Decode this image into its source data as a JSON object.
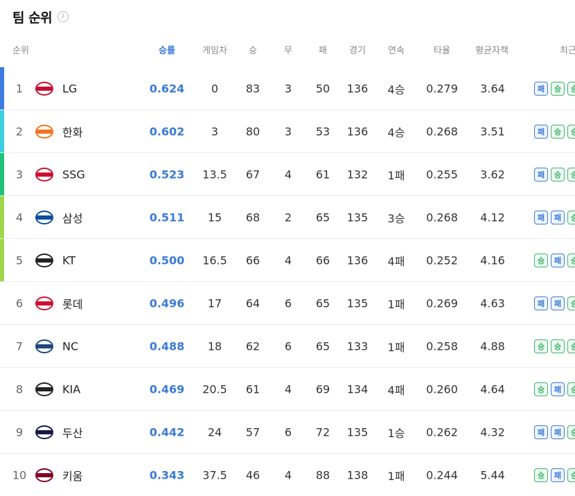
{
  "page": {
    "title": "팀 순위",
    "info_icon": "info-icon"
  },
  "columns": {
    "rank": "순위",
    "pct": "승률",
    "gb": "게임차",
    "w": "승",
    "d": "무",
    "l": "패",
    "g": "경기",
    "streak": "연속",
    "avg": "타율",
    "era": "평균자책",
    "recent": "최근"
  },
  "teams": [
    {
      "rank": "1",
      "name": "LG",
      "pct": "0.624",
      "gb": "0",
      "w": "83",
      "d": "3",
      "l": "50",
      "g": "136",
      "streak": "4승",
      "avg": "0.279",
      "era": "3.64",
      "bar": "#3d7be0",
      "logo": "#c8102e",
      "recent": [
        "패",
        "승",
        "승"
      ]
    },
    {
      "rank": "2",
      "name": "한화",
      "pct": "0.602",
      "gb": "3",
      "w": "80",
      "d": "3",
      "l": "53",
      "g": "136",
      "streak": "4승",
      "avg": "0.268",
      "era": "3.51",
      "bar": "#3ccfe0",
      "logo": "#f37321",
      "recent": [
        "패",
        "승",
        "승"
      ]
    },
    {
      "rank": "3",
      "name": "SSG",
      "pct": "0.523",
      "gb": "13.5",
      "w": "67",
      "d": "4",
      "l": "61",
      "g": "132",
      "streak": "1패",
      "avg": "0.255",
      "era": "3.62",
      "bar": "#1fc27a",
      "logo": "#ce0e2d",
      "recent": [
        "패",
        "승",
        "승"
      ]
    },
    {
      "rank": "4",
      "name": "삼성",
      "pct": "0.511",
      "gb": "15",
      "w": "68",
      "d": "2",
      "l": "65",
      "g": "135",
      "streak": "3승",
      "avg": "0.268",
      "era": "4.12",
      "bar": "#9fd64a",
      "logo": "#074ca1",
      "recent": [
        "패",
        "패",
        "승"
      ]
    },
    {
      "rank": "5",
      "name": "KT",
      "pct": "0.500",
      "gb": "16.5",
      "w": "66",
      "d": "4",
      "l": "66",
      "g": "136",
      "streak": "4패",
      "avg": "0.252",
      "era": "4.16",
      "bar": "#9fd64a",
      "logo": "#222222",
      "recent": [
        "승",
        "패",
        "승"
      ]
    },
    {
      "rank": "6",
      "name": "롯데",
      "pct": "0.496",
      "gb": "17",
      "w": "64",
      "d": "6",
      "l": "65",
      "g": "135",
      "streak": "1패",
      "avg": "0.269",
      "era": "4.63",
      "bar": "",
      "logo": "#d00f31",
      "recent": [
        "패",
        "패",
        "승"
      ]
    },
    {
      "rank": "7",
      "name": "NC",
      "pct": "0.488",
      "gb": "18",
      "w": "62",
      "d": "6",
      "l": "65",
      "g": "133",
      "streak": "1패",
      "avg": "0.258",
      "era": "4.88",
      "bar": "",
      "logo": "#1d467d",
      "recent": [
        "승",
        "승",
        "승"
      ]
    },
    {
      "rank": "8",
      "name": "KIA",
      "pct": "0.469",
      "gb": "20.5",
      "w": "61",
      "d": "4",
      "l": "69",
      "g": "134",
      "streak": "4패",
      "avg": "0.260",
      "era": "4.64",
      "bar": "",
      "logo": "#222222",
      "recent": [
        "승",
        "패",
        "승"
      ]
    },
    {
      "rank": "9",
      "name": "두산",
      "pct": "0.442",
      "gb": "24",
      "w": "57",
      "d": "6",
      "l": "72",
      "g": "135",
      "streak": "1승",
      "avg": "0.262",
      "era": "4.32",
      "bar": "",
      "logo": "#1a1748",
      "recent": [
        "패",
        "패",
        "승"
      ]
    },
    {
      "rank": "10",
      "name": "키움",
      "pct": "0.343",
      "gb": "37.5",
      "w": "46",
      "d": "4",
      "l": "88",
      "g": "138",
      "streak": "1패",
      "avg": "0.244",
      "era": "5.44",
      "bar": "",
      "logo": "#820024",
      "recent": [
        "승",
        "패",
        "승"
      ]
    }
  ]
}
